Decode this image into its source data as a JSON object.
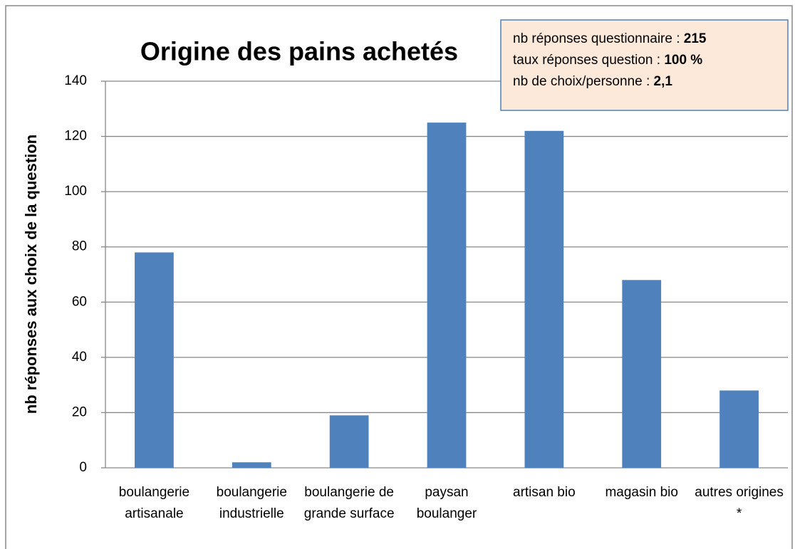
{
  "chart_data": {
    "type": "bar",
    "title": "Origine des pains achetés",
    "y_label": "nb réponses aux choix de la question",
    "categories": [
      "boulangerie artisanale",
      "boulangerie industrielle",
      "boulangerie de grande surface",
      "paysan boulanger",
      "artisan bio",
      "magasin bio",
      "autres origines *"
    ],
    "values": [
      78,
      2,
      19,
      125,
      122,
      68,
      28
    ],
    "color": "#4f81bd",
    "ylim": [
      0,
      140
    ],
    "yticks": [
      0,
      20,
      40,
      60,
      80,
      100,
      120,
      140
    ],
    "grid": true,
    "info": [
      {
        "label": "nb réponses questionnaire : ",
        "value": "215"
      },
      {
        "label": "taux réponses question : ",
        "value": "100 %"
      },
      {
        "label": "nb de choix/personne :  ",
        "value": "2,1"
      }
    ]
  }
}
